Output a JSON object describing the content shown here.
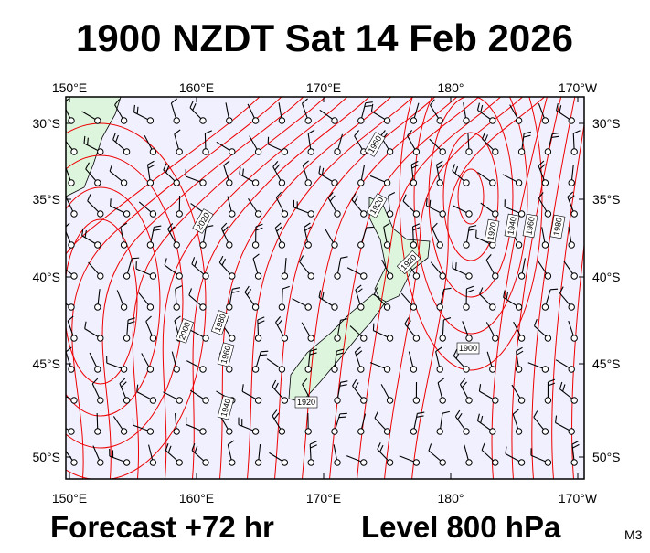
{
  "header": {
    "title": "1900 NZDT Sat 14 Feb 2026"
  },
  "lon_labels": [
    "150°E",
    "160°E",
    "170°E",
    "180°",
    "170°W"
  ],
  "lat_labels": [
    "30°S",
    "35°S",
    "40°S",
    "45°S",
    "50°S"
  ],
  "contour_labels": [
    "1960",
    "2020",
    "1920",
    "1920",
    "2000",
    "1980",
    "1960",
    "1940",
    "1920",
    "1900",
    "1920",
    "1940",
    "1960",
    "1980"
  ],
  "footer": {
    "forecast": "Forecast +72 hr",
    "level": "Level 800 hPa",
    "code": "M3"
  }
}
